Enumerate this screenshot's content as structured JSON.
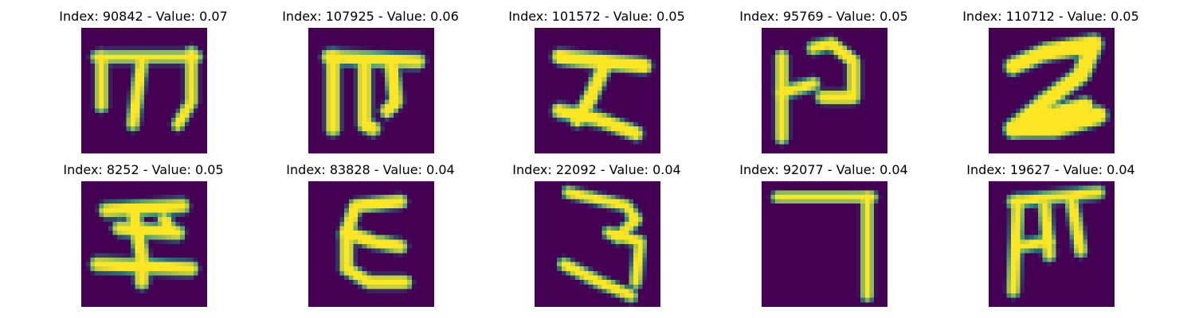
{
  "colors": {
    "background": "#440154",
    "foreground": "#fde725",
    "edge": "#21918c"
  },
  "panels": [
    {
      "title": "Index: 90842 - Value: 0.07",
      "glyph": "m-shape"
    },
    {
      "title": "Index: 107925 - Value: 0.06",
      "glyph": "pi-hook-shape"
    },
    {
      "title": "Index: 101572 - Value: 0.05",
      "glyph": "zigzag-shape"
    },
    {
      "title": "Index: 95769 - Value: 0.05",
      "glyph": "backwards-hook-shape"
    },
    {
      "title": "Index: 110712 - Value: 0.05",
      "glyph": "two-shape"
    },
    {
      "title": "Index: 8252 - Value: 0.05",
      "glyph": "anchor-shape"
    },
    {
      "title": "Index: 83828 - Value: 0.04",
      "glyph": "epsilon-shape"
    },
    {
      "title": "Index: 22092 - Value: 0.04",
      "glyph": "three-shape"
    },
    {
      "title": "Index: 92077 - Value: 0.04",
      "glyph": "seven-shape"
    },
    {
      "title": "Index: 19627 - Value: 0.04",
      "glyph": "rotated-e-shape"
    }
  ]
}
